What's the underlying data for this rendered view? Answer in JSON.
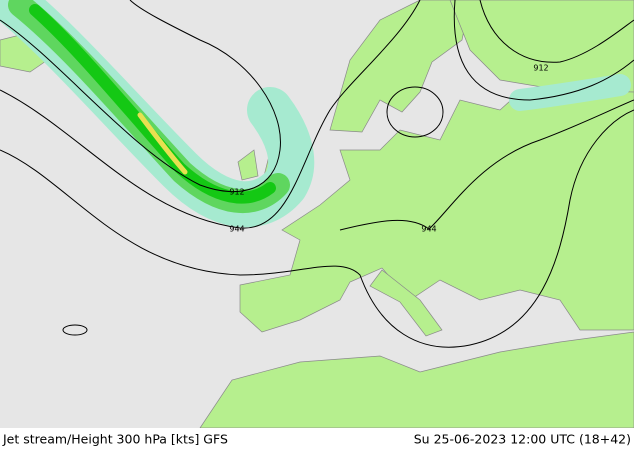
{
  "footer": {
    "left": "Jet stream/Height 300 hPa [kts] GFS",
    "right": "Su 25-06-2023 12:00 UTC (18+42)"
  },
  "contour_labels": [
    "912",
    "912",
    "944",
    "944"
  ]
}
